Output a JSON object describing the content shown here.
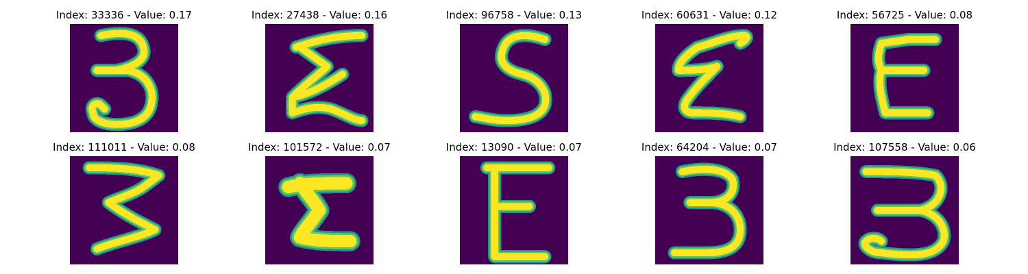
{
  "colors": {
    "background": "#440154",
    "edge": "#21918c",
    "mid": "#5ec962",
    "core": "#fde725"
  },
  "samples": [
    {
      "title": "Index: 33336 - Value: 0.17",
      "glyph": "glyph-3-curl-icon"
    },
    {
      "title": "Index: 27438 - Value: 0.16",
      "glyph": "glyph-sigma-icon"
    },
    {
      "title": "Index: 96758 - Value: 0.13",
      "glyph": "glyph-5-icon"
    },
    {
      "title": "Index: 60631 - Value: 0.12",
      "glyph": "glyph-sigma-slanted-icon"
    },
    {
      "title": "Index: 56725 - Value: 0.08",
      "glyph": "glyph-e-icon"
    },
    {
      "title": "Index: 111011 - Value: 0.08",
      "glyph": "glyph-3-zigzag-icon"
    },
    {
      "title": "Index: 101572 - Value: 0.07",
      "glyph": "glyph-bold-sigma-icon"
    },
    {
      "title": "Index: 13090 - Value: 0.07",
      "glyph": "glyph-e-box-icon"
    },
    {
      "title": "Index: 64204 - Value: 0.07",
      "glyph": "glyph-3-icon"
    },
    {
      "title": "Index: 107558 - Value: 0.06",
      "glyph": "glyph-3-wide-icon"
    }
  ]
}
